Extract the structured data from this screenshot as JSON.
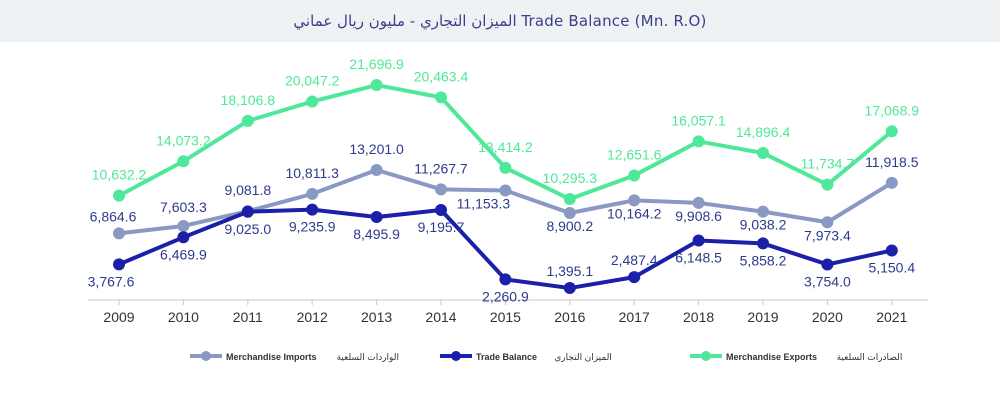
{
  "header": {
    "title": "الميزان التجاري - مليون ريال عماني     Trade Balance (Mn. R.O)"
  },
  "colors": {
    "imports": "#8a98c4",
    "balance": "#1c1fa8",
    "exports": "#4fe89a",
    "label_text": "#2f3a8c"
  },
  "chart_data": {
    "type": "line",
    "title": "الميزان التجاري - مليون ريال عماني     Trade Balance (Mn. R.O)",
    "x": [
      "2009",
      "2010",
      "2011",
      "2012",
      "2013",
      "2014",
      "2015",
      "2016",
      "2017",
      "2018",
      "2019",
      "2020",
      "2021"
    ],
    "ylim": [
      -2000,
      26000
    ],
    "grid": false,
    "legend_position": "bottom",
    "series": [
      {
        "key": "exports",
        "name": "Merchandise Exports الصادرات السلعية",
        "values": [
          10632.2,
          14073.2,
          18106.8,
          20047.2,
          21696.9,
          20463.4,
          13414.2,
          10295.3,
          12651.6,
          16057.1,
          14896.4,
          11734.7,
          17068.9
        ],
        "labels": [
          "10,632.2",
          "14,073.2",
          "18,106.8",
          "20,047.2",
          "21,696.9",
          "20,463.4",
          "13,414.2",
          "10,295.3",
          "12,651.6",
          "16,057.1",
          "14,896.4",
          "11,734.7",
          "17,068.9"
        ]
      },
      {
        "key": "imports",
        "name": "Merchandise Imports الواردات السلعية",
        "values": [
          6864.6,
          7603.3,
          9081.8,
          10811.3,
          13201.0,
          11267.7,
          11153.3,
          8900.2,
          10164.2,
          9908.6,
          9038.2,
          7973.4,
          11918.5
        ],
        "labels": [
          "6,864.6",
          "7,603.3",
          "9,081.8",
          "10,811.3",
          "13,201.0",
          "11,267.7",
          "11,153.3",
          "8,900.2",
          "10,164.2",
          "9,908.6",
          "9,038.2",
          "7,973.4",
          "11,918.5"
        ]
      },
      {
        "key": "balance",
        "name": "Trade Balance الميزان التجاري",
        "values": [
          3767.6,
          6469.9,
          9025.0,
          9235.9,
          8495.9,
          9195.7,
          2260.9,
          1395.1,
          2487.4,
          6148.5,
          5858.2,
          3754.0,
          5150.4
        ],
        "labels": [
          "3,767.6",
          "6,469.9",
          "9,025.0",
          "9,235.9",
          "8,495.9",
          "9,195.7",
          "2,260.9",
          "1,395.1",
          "2,487.4",
          "6,148.5",
          "5,858.2",
          "3,754.0",
          "5,150.4"
        ]
      }
    ],
    "legend": [
      {
        "key": "imports",
        "en": "Merchandise Imports",
        "ar": "الواردات السلعية"
      },
      {
        "key": "balance",
        "en": "Trade Balance",
        "ar": "الميزان التجاري"
      },
      {
        "key": "exports",
        "en": "Merchandise Exports",
        "ar": "الصادرات السلعية"
      }
    ]
  }
}
